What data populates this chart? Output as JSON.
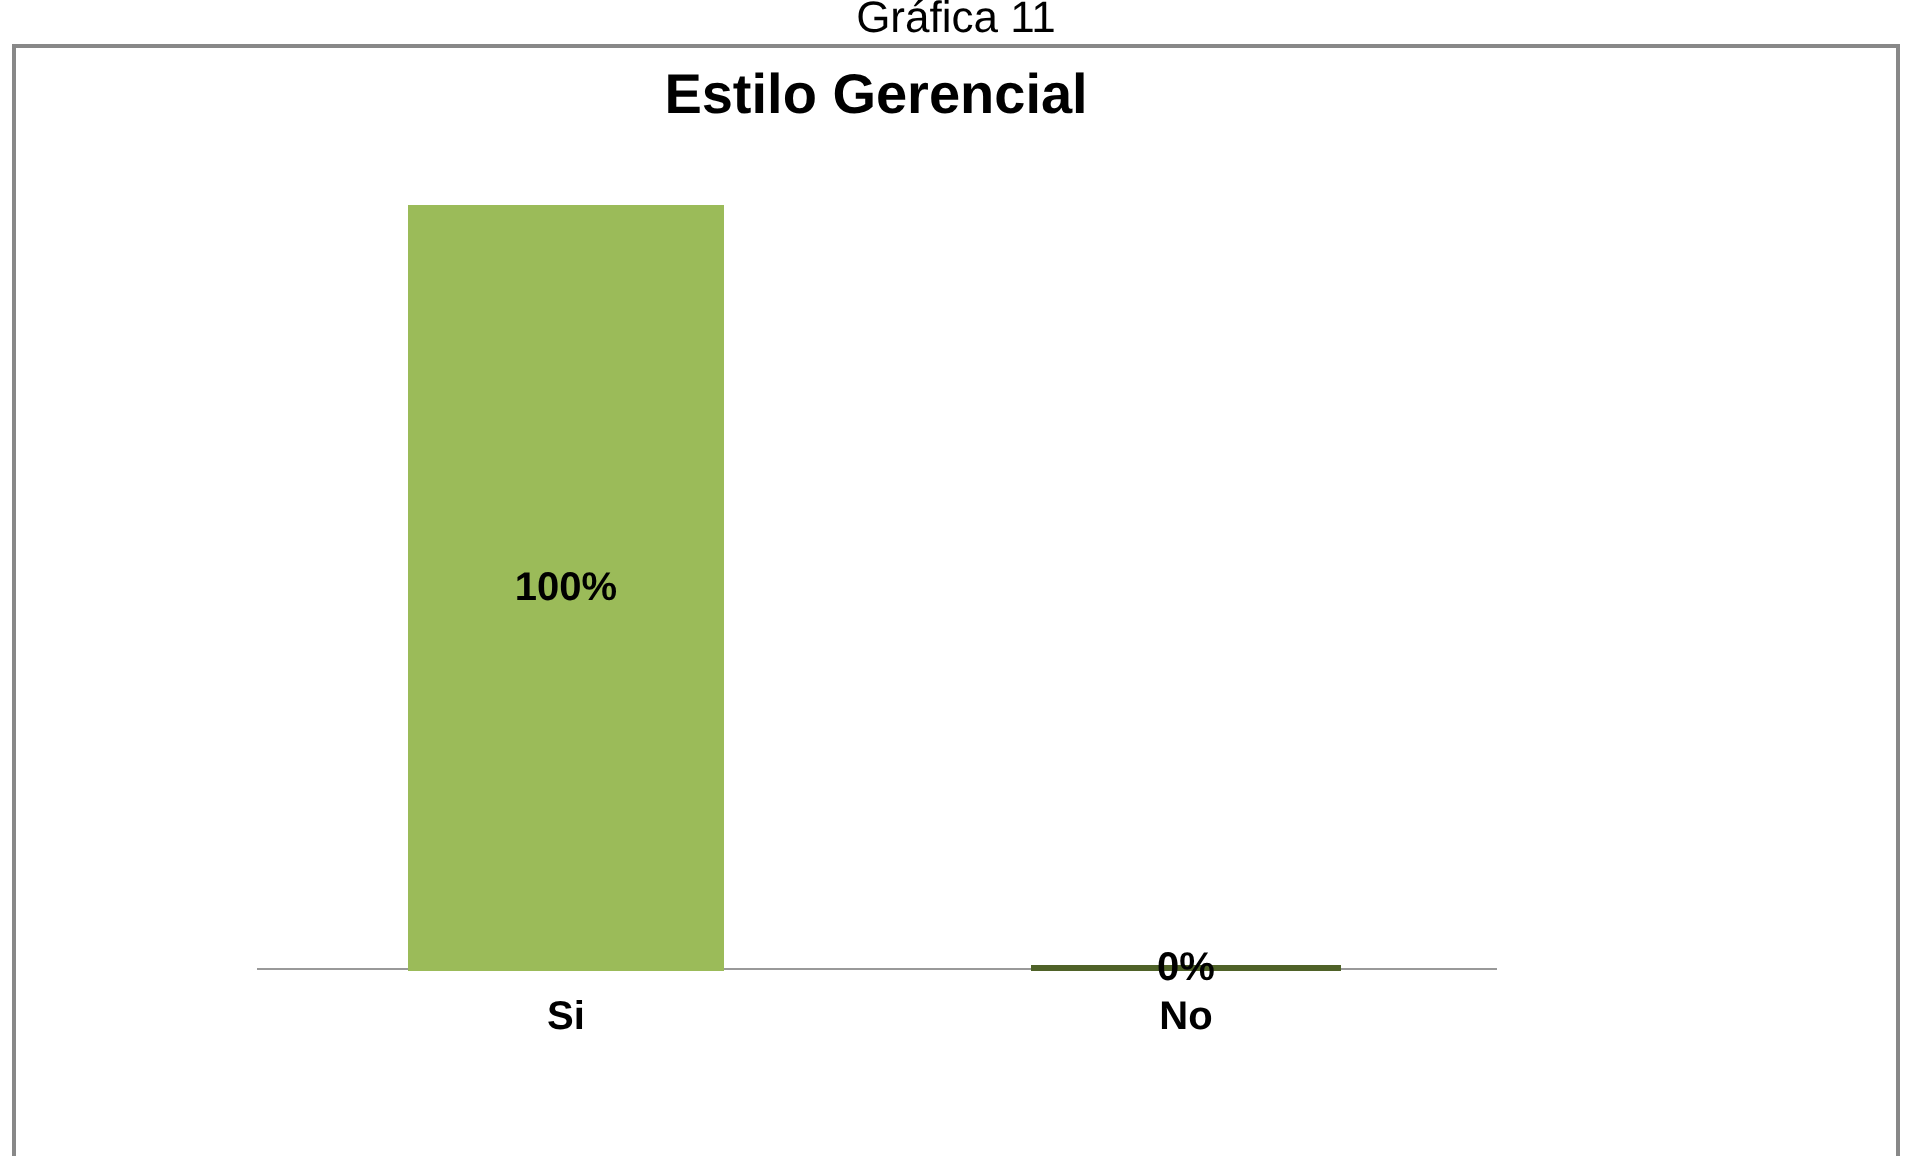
{
  "chart_data": {
    "type": "bar",
    "title": "Estilo Gerencial",
    "annotations": [
      "Gráfica 11"
    ],
    "categories": [
      "Si",
      "No"
    ],
    "values": [
      100,
      0
    ],
    "ylim": [
      0,
      100
    ],
    "colors": [
      "#9bbb59",
      "#4f6228"
    ],
    "value_labels": [
      "100%",
      "0%"
    ]
  }
}
